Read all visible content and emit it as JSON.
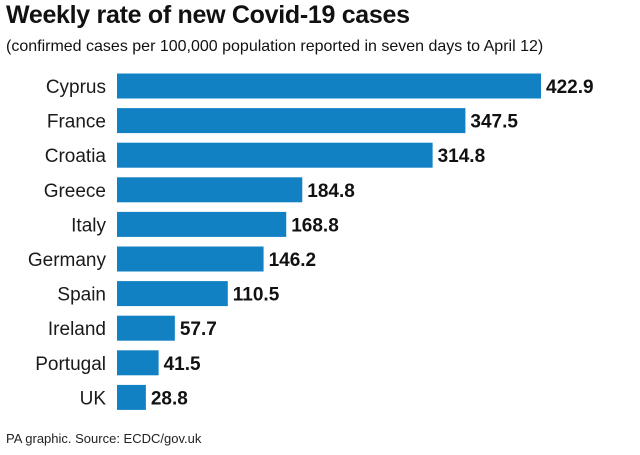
{
  "title": "Weekly rate of new Covid-19 cases",
  "subtitle": "(confirmed cases per 100,000 population reported in seven days to April 12)",
  "source": "PA graphic. Source: ECDC/gov.uk",
  "colors": {
    "bar": "#1281c4",
    "text": "#111111"
  },
  "chart_data": {
    "type": "bar",
    "orientation": "horizontal",
    "title": "Weekly rate of new Covid-19 cases",
    "subtitle": "(confirmed cases per 100,000 population reported in seven days to April 12)",
    "xlabel": "",
    "ylabel": "",
    "xlim": [
      0,
      422.9
    ],
    "grid": false,
    "legend": "none",
    "categories": [
      "Cyprus",
      "France",
      "Croatia",
      "Greece",
      "Italy",
      "Germany",
      "Spain",
      "Ireland",
      "Portugal",
      "UK"
    ],
    "values": [
      422.9,
      347.5,
      314.8,
      184.8,
      168.8,
      146.2,
      110.5,
      57.7,
      41.5,
      28.8
    ],
    "value_labels": [
      "422.9",
      "347.5",
      "314.8",
      "184.8",
      "168.8",
      "146.2",
      "110.5",
      "57.7",
      "41.5",
      "28.8"
    ]
  }
}
